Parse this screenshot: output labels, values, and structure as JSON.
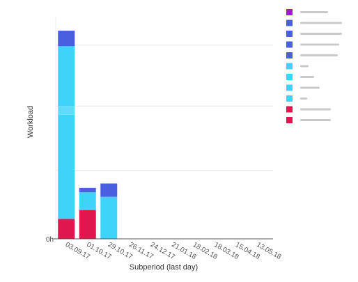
{
  "chart_data": {
    "type": "bar",
    "stacked": true,
    "xlabel": "Subperiod (last day)",
    "ylabel": "Workload",
    "y_tick_label": "0h",
    "ylim": [
      0,
      100
    ],
    "grid": true,
    "legend_position": "right",
    "categories": [
      "03.09.17",
      "01.10.17",
      "29.10.17",
      "26.11.17",
      "24.12.17",
      "21.01.18",
      "18.02.18",
      "18.03.18",
      "15.04.18",
      "13.05.18"
    ],
    "series": [
      {
        "color": "#e0174f",
        "values": [
          9,
          13,
          0,
          0,
          0,
          0,
          0,
          0,
          0,
          0
        ]
      },
      {
        "color": "#3ed3f8",
        "values": [
          47,
          0,
          0,
          0,
          0,
          0,
          0,
          0,
          0,
          0
        ]
      },
      {
        "color": "#5fdcfa",
        "values": [
          4,
          0,
          0,
          0,
          0,
          0,
          0,
          0,
          0,
          0
        ]
      },
      {
        "color": "#3ed3f8",
        "values": [
          27,
          8,
          19,
          0,
          0,
          0,
          0,
          0,
          0,
          0
        ]
      },
      {
        "color": "#4a5fe0",
        "values": [
          7,
          2,
          6,
          0,
          0,
          0,
          0,
          0,
          0,
          0
        ]
      }
    ],
    "legend_colors": [
      "#9c1fc9",
      "#4a5fe0",
      "#4a5fe0",
      "#4a5fe0",
      "#4a5fe0",
      "#3ed3f8",
      "#3ed3f8",
      "#3ed3f8",
      "#3ed3f8",
      "#e0174f",
      "#e0174f"
    ]
  }
}
